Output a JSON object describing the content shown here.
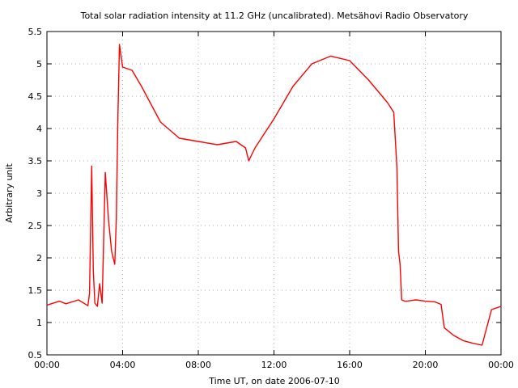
{
  "chart_data": {
    "type": "line",
    "title": "Total solar radiation intensity at 11.2 GHz (uncalibrated). Metsähovi Radio Observatory",
    "xlabel": "Time UT, on date 2006-07-10",
    "ylabel": "Arbitrary unit",
    "xlim": [
      "00:00",
      "24:00"
    ],
    "ylim": [
      0.5,
      5.5
    ],
    "xticks": [
      "00:00",
      "04:00",
      "08:00",
      "12:00",
      "16:00",
      "20:00",
      "00:00"
    ],
    "yticks": [
      "0.5",
      "1",
      "1.5",
      "2",
      "2.5",
      "3",
      "3.5",
      "4",
      "4.5",
      "5",
      "5.5"
    ],
    "grid": true,
    "line_color": "#ff0000",
    "series": [
      {
        "x": [
          "00:00",
          "00:40",
          "01:00",
          "01:40",
          "02:10",
          "02:15",
          "02:22",
          "02:27",
          "02:32",
          "02:40",
          "02:47",
          "02:55",
          "03:05",
          "03:15",
          "03:25",
          "03:35",
          "03:40",
          "03:45",
          "03:50",
          "04:00",
          "04:30",
          "05:00",
          "06:00",
          "07:00",
          "08:00",
          "09:00",
          "10:00",
          "10:30",
          "10:40",
          "11:00",
          "12:00",
          "13:00",
          "14:00",
          "15:00",
          "16:00",
          "17:00",
          "18:00",
          "18:20",
          "18:30",
          "18:35",
          "18:40",
          "18:45",
          "18:55",
          "19:00",
          "19:30",
          "20:00",
          "20:30",
          "20:50",
          "21:00",
          "21:30",
          "22:00",
          "22:30",
          "23:00",
          "23:30",
          "24:00"
        ],
        "y": [
          1.27,
          1.33,
          1.29,
          1.35,
          1.26,
          1.45,
          3.42,
          1.8,
          1.3,
          1.25,
          1.6,
          1.3,
          3.32,
          2.6,
          2.1,
          1.9,
          2.6,
          4.2,
          5.3,
          4.95,
          4.9,
          4.65,
          4.1,
          3.85,
          3.8,
          3.75,
          3.8,
          3.7,
          3.5,
          3.7,
          4.15,
          4.65,
          5.0,
          5.12,
          5.05,
          4.75,
          4.4,
          4.25,
          3.4,
          2.1,
          1.9,
          1.35,
          1.33,
          1.33,
          1.35,
          1.33,
          1.32,
          1.28,
          0.92,
          0.8,
          0.72,
          0.68,
          0.65,
          1.2,
          1.25
        ]
      }
    ]
  }
}
